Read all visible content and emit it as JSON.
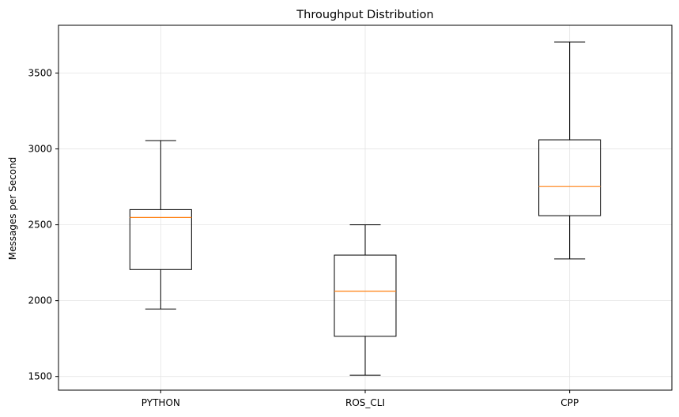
{
  "chart_data": {
    "type": "box",
    "title": "Throughput Distribution",
    "xlabel": "",
    "ylabel": "Messages per Second",
    "categories": [
      "PYTHON",
      "ROS_CLI",
      "CPP"
    ],
    "boxes": [
      {
        "category": "PYTHON",
        "whisker_low": 1945,
        "q1": 2205,
        "median": 2548,
        "q3": 2600,
        "whisker_high": 3055
      },
      {
        "category": "ROS_CLI",
        "whisker_low": 1508,
        "q1": 1765,
        "median": 2062,
        "q3": 2300,
        "whisker_high": 2500
      },
      {
        "category": "CPP",
        "whisker_low": 2275,
        "q1": 2560,
        "median": 2752,
        "q3": 3060,
        "whisker_high": 3705
      }
    ],
    "ylim": [
      1410,
      3815
    ],
    "yticks": [
      1500,
      2000,
      2500,
      3000,
      3500
    ],
    "grid": true,
    "legend": "none",
    "colors": {
      "box": "#000000",
      "median": "#ff7f0e",
      "grid": "#e5e5e5",
      "axis": "#000000"
    }
  }
}
